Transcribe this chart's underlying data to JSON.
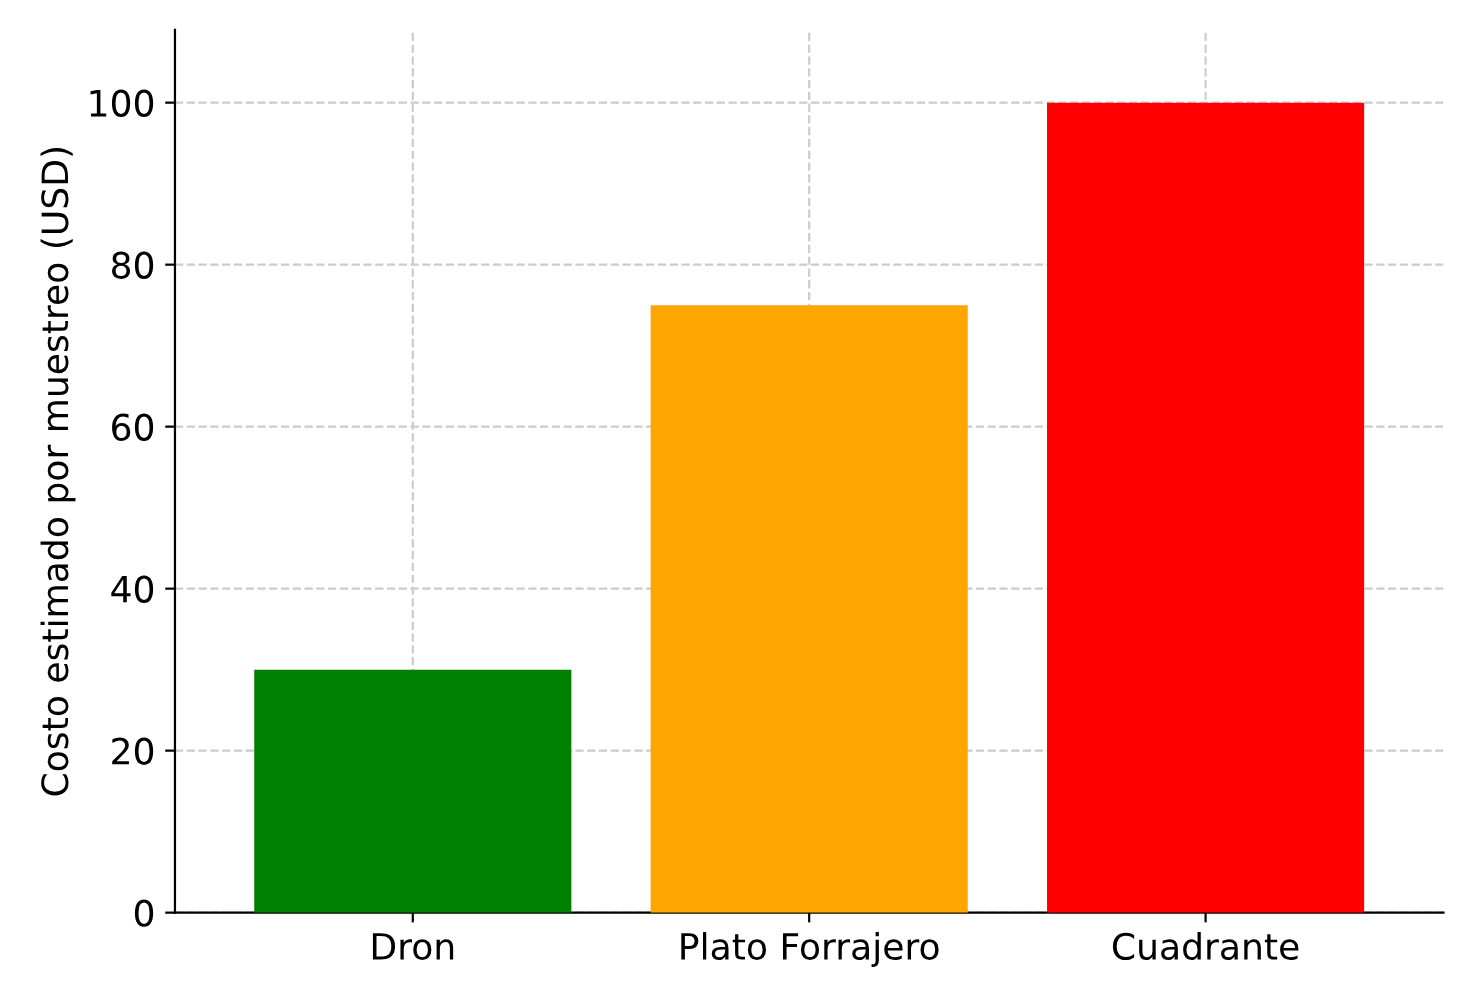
{
  "chart_data": {
    "type": "bar",
    "ylabel": "Costo estimado por muestreo (USD)",
    "categories": [
      "Dron",
      "Plato Forrajero",
      "Cuadrante"
    ],
    "values": [
      30,
      75,
      100
    ],
    "colors": [
      "#008000",
      "#ffa500",
      "#ff0000"
    ],
    "ylim": [
      0,
      109
    ],
    "yticks": [
      0,
      20,
      40,
      60,
      80,
      100
    ],
    "grid": true
  }
}
